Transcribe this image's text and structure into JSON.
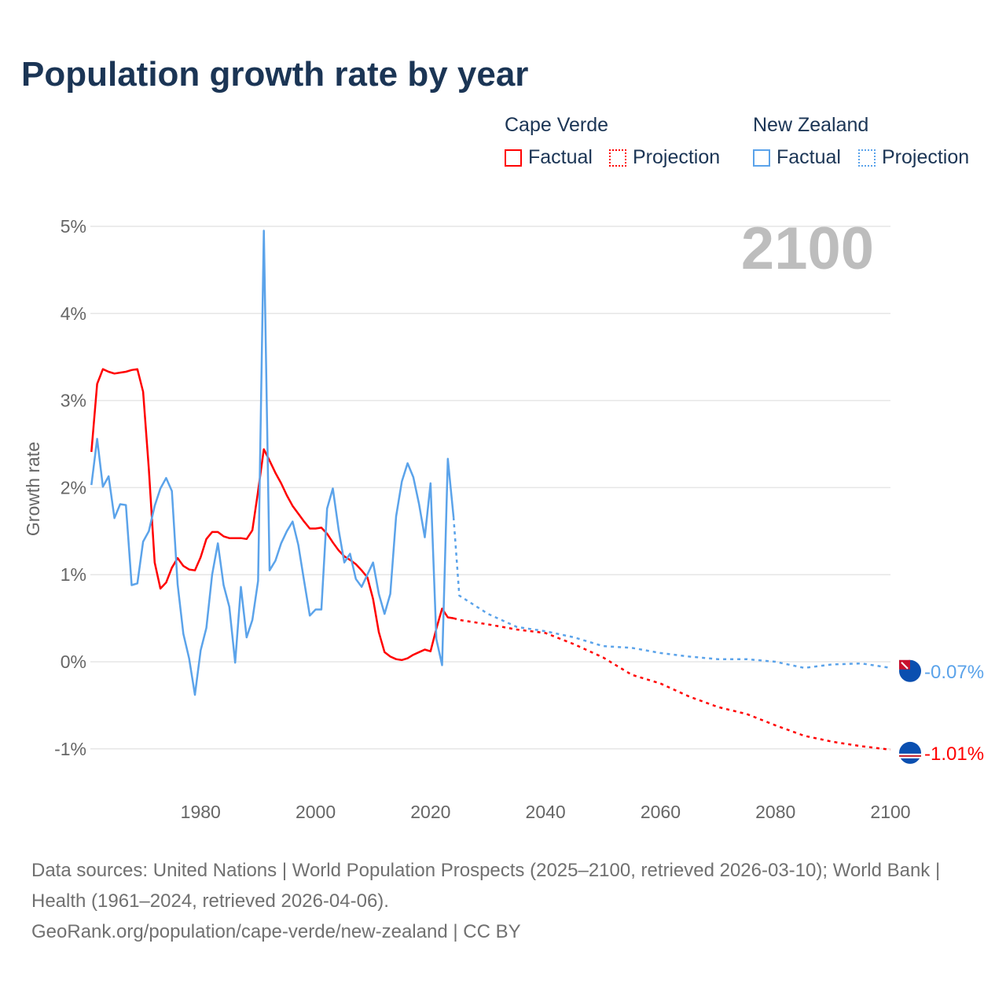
{
  "title": "Population growth rate by year",
  "legend": {
    "groups": [
      {
        "name": "Cape Verde",
        "factual": "Factual",
        "projection": "Projection",
        "color": "#ff0000"
      },
      {
        "name": "New Zealand",
        "factual": "Factual",
        "projection": "Projection",
        "color": "#5ba3ea"
      }
    ]
  },
  "year_label": "2100",
  "footer": {
    "sources": "Data sources: United Nations | World Population Prospects (2025–2100, retrieved 2026-03-10); World Bank | Health (1961–2024, retrieved 2026-04-06).",
    "credit": "GeoRank.org/population/cape-verde/new-zealand | CC BY"
  },
  "chart_data": {
    "type": "line",
    "title": "Population growth rate by year",
    "xlabel": "",
    "ylabel": "Growth rate",
    "xlim": [
      1961,
      2100
    ],
    "ylim": [
      -1,
      5
    ],
    "xticks": [
      1980,
      2000,
      2020,
      2040,
      2060,
      2080,
      2100
    ],
    "xtick_labels": [
      "1980",
      "2000",
      "2020",
      "2040",
      "2060",
      "2080",
      "2100"
    ],
    "yticks": [
      -1,
      0,
      1,
      2,
      3,
      4,
      5
    ],
    "ytick_labels": [
      "-1%",
      "0%",
      "1%",
      "2%",
      "3%",
      "4%",
      "5%"
    ],
    "grid": true,
    "legend_position": "top-right",
    "series": [
      {
        "name": "Cape Verde Factual",
        "color": "#ff0000",
        "style": "solid",
        "x_start": 1961,
        "values": [
          2.41,
          3.19,
          3.36,
          3.33,
          3.31,
          3.32,
          3.33,
          3.35,
          3.36,
          3.1,
          2.21,
          1.14,
          0.84,
          0.91,
          1.08,
          1.19,
          1.1,
          1.06,
          1.05,
          1.2,
          1.41,
          1.49,
          1.49,
          1.44,
          1.42,
          1.42,
          1.42,
          1.41,
          1.51,
          1.96,
          2.44,
          2.31,
          2.17,
          2.05,
          1.91,
          1.79,
          1.7,
          1.61,
          1.53,
          1.53,
          1.54,
          1.47,
          1.37,
          1.28,
          1.21,
          1.17,
          1.12,
          1.05,
          0.97,
          0.72,
          0.34,
          0.11,
          0.06,
          0.03,
          0.02,
          0.04,
          0.08,
          0.11,
          0.14,
          0.12,
          0.38,
          0.61,
          0.51,
          0.5
        ]
      },
      {
        "name": "Cape Verde Projection",
        "color": "#ff0000",
        "style": "dotted",
        "x": [
          2024,
          2025,
          2030,
          2035,
          2040,
          2045,
          2050,
          2055,
          2060,
          2065,
          2070,
          2075,
          2080,
          2085,
          2090,
          2095,
          2100
        ],
        "values": [
          0.5,
          0.48,
          0.43,
          0.37,
          0.33,
          0.2,
          0.05,
          -0.15,
          -0.25,
          -0.4,
          -0.52,
          -0.6,
          -0.73,
          -0.85,
          -0.92,
          -0.97,
          -1.01
        ]
      },
      {
        "name": "New Zealand Factual",
        "color": "#5ba3ea",
        "style": "solid",
        "x_start": 1961,
        "values": [
          2.03,
          2.56,
          2.01,
          2.13,
          1.65,
          1.81,
          1.8,
          0.88,
          0.9,
          1.38,
          1.5,
          1.79,
          1.99,
          2.11,
          1.96,
          0.89,
          0.32,
          0.04,
          -0.38,
          0.13,
          0.39,
          1.0,
          1.36,
          0.88,
          0.63,
          -0.01,
          0.86,
          0.28,
          0.48,
          0.93,
          4.95,
          1.05,
          1.16,
          1.36,
          1.5,
          1.61,
          1.34,
          0.93,
          0.53,
          0.6,
          0.6,
          1.76,
          1.99,
          1.52,
          1.14,
          1.24,
          0.95,
          0.86,
          1.0,
          1.14,
          0.78,
          0.55,
          0.78,
          1.67,
          2.07,
          2.28,
          2.12,
          1.81,
          1.43,
          2.05,
          0.26,
          -0.04,
          2.33,
          1.66
        ]
      },
      {
        "name": "New Zealand Projection",
        "color": "#5ba3ea",
        "style": "dotted",
        "x": [
          2024,
          2025,
          2030,
          2035,
          2040,
          2045,
          2050,
          2055,
          2060,
          2065,
          2070,
          2075,
          2080,
          2085,
          2090,
          2095,
          2100
        ],
        "values": [
          1.66,
          0.76,
          0.55,
          0.4,
          0.35,
          0.28,
          0.18,
          0.16,
          0.1,
          0.06,
          0.03,
          0.03,
          0.0,
          -0.07,
          -0.03,
          -0.02,
          -0.07
        ]
      }
    ],
    "end_labels": [
      {
        "series": "New Zealand",
        "text": "-0.07%",
        "color": "#5ba3ea"
      },
      {
        "series": "Cape Verde",
        "text": "-1.01%",
        "color": "#ff0000"
      }
    ]
  }
}
